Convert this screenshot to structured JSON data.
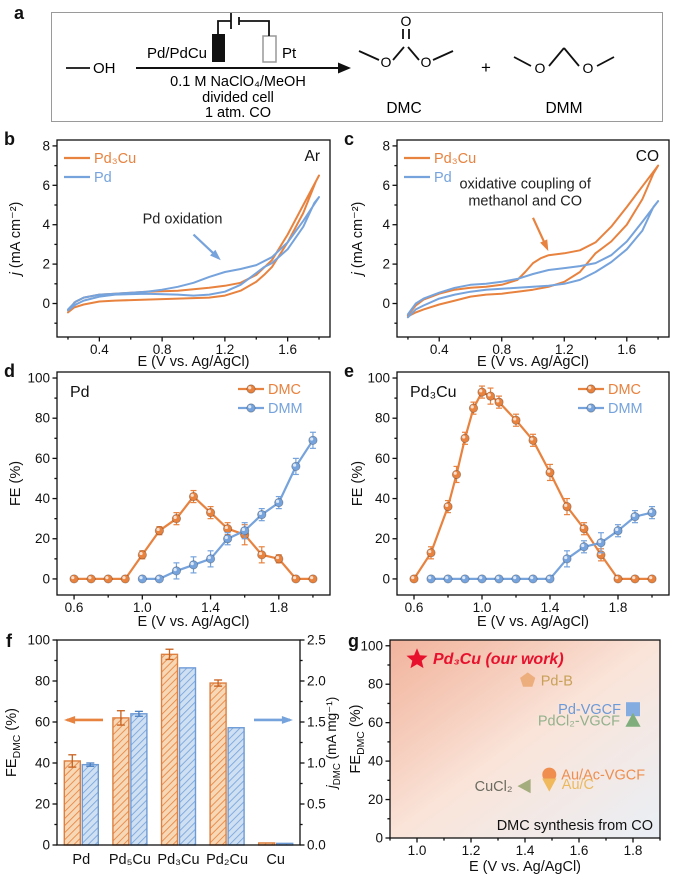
{
  "panels": {
    "a": "a",
    "b": "b",
    "c": "c",
    "d": "d",
    "e": "e",
    "f": "f",
    "g": "g"
  },
  "panel_a": {
    "reactant_label": "OH",
    "anode_label": "Pd/PdCu",
    "cathode_label": "Pt",
    "conditions": [
      "0.1 M NaClO₄/MeOH",
      "divided cell",
      "1 atm. CO"
    ],
    "plus": "+",
    "product_dmc": "DMC",
    "product_dmm": "DMM",
    "atom_o": "O"
  },
  "chart_data": {
    "b": {
      "type": "line",
      "corner_tag": "Ar",
      "xlabel": "E (V vs. Ag/AgCl)",
      "ylabel": [
        {
          "t": "j",
          "i": 1
        },
        {
          "t": " (mA cm⁻²)"
        }
      ],
      "xlim": [
        0.13,
        1.87
      ],
      "ylim": [
        -1.7,
        8.3
      ],
      "xticks": [
        0.4,
        0.8,
        1.2,
        1.6
      ],
      "xtick_labels": [
        "0.4",
        "0.8",
        "1.2",
        "1.6"
      ],
      "yticks": [
        0,
        2,
        4,
        6,
        8
      ],
      "ytick_labels": [
        "0",
        "2",
        "4",
        "6",
        "8"
      ],
      "xminor": 0.2,
      "yminor": 1,
      "annotation": {
        "lines": [
          "Pd oxidation"
        ],
        "x": 0.93,
        "y": 4.05,
        "color": "#222222",
        "arrow": {
          "x1": 1.0,
          "y1": 3.5,
          "x2": 1.16,
          "y2": 2.3,
          "color": "#76A3DC"
        }
      },
      "series": [
        {
          "name": "Pd₃Cu",
          "color": "#E8823F",
          "x": [
            0.2,
            0.24,
            0.3,
            0.4,
            0.5,
            0.7,
            0.9,
            1.1,
            1.2,
            1.3,
            1.4,
            1.5,
            1.6,
            1.7,
            1.8,
            1.78,
            1.7,
            1.6,
            1.5,
            1.45,
            1.4,
            1.3,
            1.2,
            1.1,
            0.9,
            0.7,
            0.5,
            0.4,
            0.3,
            0.24,
            0.2
          ],
          "y": [
            -0.45,
            0.05,
            0.3,
            0.45,
            0.5,
            0.6,
            0.65,
            0.8,
            0.9,
            1.05,
            1.45,
            2.2,
            3.5,
            5.0,
            6.5,
            6.2,
            4.6,
            3.1,
            1.85,
            1.45,
            1.1,
            0.65,
            0.4,
            0.3,
            0.25,
            0.2,
            0.15,
            0.1,
            -0.05,
            -0.2,
            -0.45
          ]
        },
        {
          "name": "Pd",
          "color": "#76A3DC",
          "x": [
            0.2,
            0.25,
            0.3,
            0.4,
            0.5,
            0.7,
            0.8,
            0.9,
            1.0,
            1.1,
            1.2,
            1.3,
            1.4,
            1.5,
            1.6,
            1.7,
            1.8,
            1.77,
            1.7,
            1.6,
            1.5,
            1.45,
            1.4,
            1.3,
            1.2,
            1.1,
            1.0,
            0.9,
            0.7,
            0.5,
            0.4,
            0.3,
            0.25,
            0.2
          ],
          "y": [
            -0.3,
            0.1,
            0.3,
            0.45,
            0.5,
            0.6,
            0.7,
            0.85,
            1.05,
            1.35,
            1.6,
            1.75,
            1.95,
            2.35,
            3.1,
            4.2,
            5.4,
            5.1,
            3.9,
            2.75,
            2.05,
            1.85,
            1.55,
            0.95,
            0.6,
            0.45,
            0.4,
            0.45,
            0.5,
            0.45,
            0.35,
            0.15,
            -0.05,
            -0.35
          ]
        }
      ]
    },
    "c": {
      "type": "line",
      "corner_tag": "CO",
      "xlabel": "E (V vs. Ag/AgCl)",
      "ylabel": [
        {
          "t": "j",
          "i": 1
        },
        {
          "t": " (mA cm⁻²)"
        }
      ],
      "xlim": [
        0.13,
        1.87
      ],
      "ylim": [
        -1.7,
        8.3
      ],
      "xticks": [
        0.4,
        0.8,
        1.2,
        1.6
      ],
      "xtick_labels": [
        "0.4",
        "0.8",
        "1.2",
        "1.6"
      ],
      "yticks": [
        0,
        2,
        4,
        6,
        8
      ],
      "ytick_labels": [
        "0",
        "2",
        "4",
        "6",
        "8"
      ],
      "xminor": 0.2,
      "yminor": 1,
      "annotation": {
        "lines": [
          "oxidative coupling of",
          "methanol and CO"
        ],
        "x": 0.95,
        "y": 5.85,
        "color": "#222222",
        "arrow": {
          "x1": 1.0,
          "y1": 4.35,
          "x2": 1.09,
          "y2": 2.8,
          "color": "#E8823F"
        }
      },
      "series": [
        {
          "name": "Pd₃Cu",
          "color": "#E8823F",
          "x": [
            0.2,
            0.25,
            0.3,
            0.4,
            0.5,
            0.6,
            0.7,
            0.8,
            0.9,
            0.95,
            1.0,
            1.05,
            1.1,
            1.2,
            1.3,
            1.4,
            1.5,
            1.6,
            1.7,
            1.8,
            1.77,
            1.7,
            1.6,
            1.5,
            1.4,
            1.3,
            1.2,
            1.1,
            1.0,
            0.9,
            0.8,
            0.7,
            0.6,
            0.5,
            0.4,
            0.3,
            0.25,
            0.2
          ],
          "y": [
            -0.6,
            -0.1,
            0.2,
            0.5,
            0.7,
            0.8,
            0.85,
            0.95,
            1.2,
            1.6,
            2.05,
            2.3,
            2.45,
            2.55,
            2.7,
            3.1,
            3.9,
            4.9,
            5.95,
            7.0,
            6.6,
            5.3,
            4.0,
            3.15,
            2.55,
            1.6,
            1.1,
            0.85,
            0.7,
            0.6,
            0.5,
            0.45,
            0.35,
            0.15,
            -0.05,
            -0.3,
            -0.45,
            -0.65
          ]
        },
        {
          "name": "Pd",
          "color": "#76A3DC",
          "x": [
            0.2,
            0.25,
            0.3,
            0.4,
            0.5,
            0.6,
            0.7,
            0.8,
            0.9,
            1.0,
            1.1,
            1.2,
            1.3,
            1.4,
            1.5,
            1.6,
            1.7,
            1.8,
            1.77,
            1.7,
            1.6,
            1.5,
            1.4,
            1.3,
            1.2,
            1.1,
            1.0,
            0.9,
            0.8,
            0.7,
            0.6,
            0.5,
            0.4,
            0.3,
            0.25,
            0.2
          ],
          "y": [
            -0.55,
            0.0,
            0.25,
            0.55,
            0.8,
            0.95,
            1.0,
            1.1,
            1.25,
            1.5,
            1.7,
            1.8,
            1.9,
            2.05,
            2.45,
            3.15,
            4.15,
            5.2,
            4.9,
            3.7,
            2.75,
            2.1,
            1.6,
            1.2,
            1.0,
            0.9,
            0.85,
            0.8,
            0.75,
            0.7,
            0.6,
            0.45,
            0.25,
            -0.1,
            -0.3,
            -0.7
          ]
        }
      ]
    },
    "d": {
      "type": "line",
      "tag": "Pd",
      "xlabel": "E (V vs. Ag/AgCl)",
      "ylabel": [
        {
          "t": "FE (%)"
        }
      ],
      "xlim": [
        0.5,
        2.1
      ],
      "ylim": [
        -8,
        103
      ],
      "xticks": [
        0.6,
        1.0,
        1.4,
        1.8
      ],
      "xtick_labels": [
        "0.6",
        "1.0",
        "1.4",
        "1.8"
      ],
      "yticks": [
        0,
        20,
        40,
        60,
        80,
        100
      ],
      "ytick_labels": [
        "0",
        "20",
        "40",
        "60",
        "80",
        "100"
      ],
      "xminor": 0.2,
      "yminor": 10,
      "legend": true,
      "series": [
        {
          "name": "DMC",
          "color": "#E8823F",
          "x": [
            0.6,
            0.7,
            0.8,
            0.9,
            1.0,
            1.1,
            1.2,
            1.3,
            1.4,
            1.5,
            1.6,
            1.7,
            1.8,
            1.9,
            2.0
          ],
          "y": [
            0,
            0,
            0,
            0,
            12,
            24,
            30,
            41,
            33,
            25,
            22,
            12,
            10,
            0,
            0
          ],
          "err": [
            0.8,
            0.8,
            0.8,
            0.8,
            2,
            2,
            3,
            3,
            3,
            3,
            5,
            4,
            2,
            0.8,
            0.8
          ]
        },
        {
          "name": "DMM",
          "color": "#76A3DC",
          "x": [
            1.0,
            1.1,
            1.2,
            1.3,
            1.4,
            1.5,
            1.6,
            1.7,
            1.8,
            1.9,
            2.0
          ],
          "y": [
            0,
            0,
            4,
            7,
            10,
            20,
            24,
            32,
            38,
            56,
            69
          ],
          "err": [
            0.8,
            0.8,
            4,
            4,
            4,
            3,
            4,
            3,
            3,
            4,
            4
          ]
        }
      ]
    },
    "e": {
      "type": "line",
      "tag": "Pd₃Cu",
      "xlabel": "E (V vs. Ag/AgCl)",
      "ylabel": [
        {
          "t": "FE (%)"
        }
      ],
      "xlim": [
        0.5,
        2.1
      ],
      "ylim": [
        -8,
        103
      ],
      "xticks": [
        0.6,
        1.0,
        1.4,
        1.8
      ],
      "xtick_labels": [
        "0.6",
        "1.0",
        "1.4",
        "1.8"
      ],
      "yticks": [
        0,
        20,
        40,
        60,
        80,
        100
      ],
      "ytick_labels": [
        "0",
        "20",
        "40",
        "60",
        "80",
        "100"
      ],
      "xminor": 0.2,
      "yminor": 10,
      "legend": true,
      "series": [
        {
          "name": "DMC",
          "color": "#E8823F",
          "x": [
            0.6,
            0.7,
            0.8,
            0.85,
            0.9,
            0.95,
            1.0,
            1.05,
            1.1,
            1.2,
            1.3,
            1.4,
            1.5,
            1.6,
            1.7,
            1.8,
            1.9,
            2.0
          ],
          "y": [
            0,
            13,
            36,
            52,
            70,
            85,
            93,
            91,
            88,
            79,
            69,
            53,
            36,
            25,
            12,
            0,
            0,
            0
          ],
          "err": [
            0.8,
            3,
            3,
            4,
            3,
            3,
            3,
            4,
            3,
            3,
            3,
            4,
            4,
            3,
            3,
            0.8,
            0.8,
            0.8
          ]
        },
        {
          "name": "DMM",
          "color": "#76A3DC",
          "x": [
            0.7,
            0.8,
            0.9,
            1.0,
            1.1,
            1.2,
            1.3,
            1.4,
            1.5,
            1.6,
            1.7,
            1.8,
            1.9,
            2.0
          ],
          "y": [
            0,
            0,
            0,
            0,
            0,
            0,
            0,
            0,
            10,
            16,
            18,
            24,
            31,
            33
          ],
          "err": [
            0.6,
            0.6,
            0.6,
            0.6,
            0.6,
            0.6,
            0.6,
            0.6,
            4,
            3,
            5,
            3,
            3,
            3
          ]
        }
      ]
    },
    "f": {
      "type": "bar",
      "categories": [
        "Pd",
        "Pd₅Cu",
        "Pd₃Cu",
        "Pd₂Cu",
        "Cu"
      ],
      "ylabel_left": [
        {
          "t": "FE"
        },
        {
          "t": "DMC",
          "s": 1
        },
        {
          "t": " (%)"
        }
      ],
      "ylabel_right": [
        {
          "t": "j",
          "i": 1
        },
        {
          "t": "DMC",
          "s": 1
        },
        {
          "t": " (mA mg⁻¹)"
        }
      ],
      "ylim_left": [
        0,
        100
      ],
      "yticks_left": [
        0,
        20,
        40,
        60,
        80,
        100
      ],
      "ytick_labels_left": [
        "0",
        "20",
        "40",
        "60",
        "80",
        "100"
      ],
      "ylim_right": [
        0,
        2.5
      ],
      "yticks_right": [
        0,
        0.5,
        1.0,
        1.5,
        2.0,
        2.5
      ],
      "ytick_labels_right": [
        "0.0",
        "0.5",
        "1.0",
        "1.5",
        "2.0",
        "2.5"
      ],
      "yminor_left": 10,
      "yminor_right": 0.25,
      "series": [
        {
          "name": "FE_DMC",
          "axis": "left",
          "color": "#E8823F",
          "values": [
            41,
            62,
            93,
            79,
            1
          ],
          "errors": [
            3,
            3.5,
            2.5,
            1.5,
            0.4
          ]
        },
        {
          "name": "j_DMC",
          "axis": "right",
          "color": "#76A3DC",
          "values": [
            0.98,
            1.6,
            2.16,
            1.43,
            0.02
          ],
          "errors": [
            0.02,
            0.03,
            0,
            0,
            0
          ]
        }
      ]
    },
    "g": {
      "type": "scatter",
      "xlabel": "E (V vs. Ag/AgCl)",
      "ylabel": [
        {
          "t": "FE"
        },
        {
          "t": "DMC",
          "s": 1
        },
        {
          "t": " (%)"
        }
      ],
      "xlim": [
        0.9,
        1.9
      ],
      "ylim": [
        0,
        103
      ],
      "xticks": [
        1.0,
        1.2,
        1.4,
        1.6,
        1.8
      ],
      "xtick_labels": [
        "1.0",
        "1.2",
        "1.4",
        "1.6",
        "1.8"
      ],
      "yticks": [
        0,
        20,
        40,
        60,
        80,
        100
      ],
      "ytick_labels": [
        "0",
        "20",
        "40",
        "60",
        "80",
        "100"
      ],
      "xminor": 0.1,
      "yminor": 10,
      "note": "DMC synthesis from CO",
      "bg_colors": [
        "#EFA78C",
        "#FAE4D9",
        "#E9EFF6"
      ],
      "points": [
        {
          "label": "Pd₃Cu (our work)",
          "x": 1.0,
          "y": 93,
          "marker": "star",
          "size": 11,
          "fill": "#E8112D",
          "label_color": "#E8112D",
          "side": "right",
          "bold": true,
          "italic": true,
          "label_size": 16
        },
        {
          "label": "Pd-B",
          "x": 1.41,
          "y": 82,
          "marker": "pentagon",
          "size": 8,
          "fill": "#EDAE7E",
          "label_color": "#C8A159",
          "side": "right",
          "label_size": 14.5
        },
        {
          "label": "Pd-VGCF",
          "x": 1.8,
          "y": 67,
          "marker": "square",
          "size": 7,
          "fill": "#85ACE0",
          "label_color": "#6C99D8",
          "side": "left",
          "label_size": 14.5
        },
        {
          "label": "PdCl₂-VGCF",
          "x": 1.8,
          "y": 61,
          "marker": "triangle-up",
          "size": 8,
          "fill": "#7FAE7C",
          "label_color": "#93B18C",
          "side": "left",
          "label_size": 14.5
        },
        {
          "label": "Au/Ac-VGCF",
          "x": 1.49,
          "y": 33,
          "marker": "circle",
          "size": 7,
          "fill": "#EF8E4E",
          "label_color": "#EF8E4E",
          "side": "right",
          "label_size": 14.5
        },
        {
          "label": "Au/C",
          "x": 1.49,
          "y": 28,
          "marker": "triangle-down",
          "size": 7.5,
          "fill": "#EFB95C",
          "label_color": "#EBB95E",
          "side": "right",
          "label_size": 14.5
        },
        {
          "label": "CuCl₂",
          "x": 1.4,
          "y": 27,
          "marker": "triangle-left",
          "size": 7.5,
          "fill": "#A3AD7E",
          "label_color": "#6B6B5F",
          "side": "left",
          "label_size": 14.5
        }
      ]
    }
  }
}
